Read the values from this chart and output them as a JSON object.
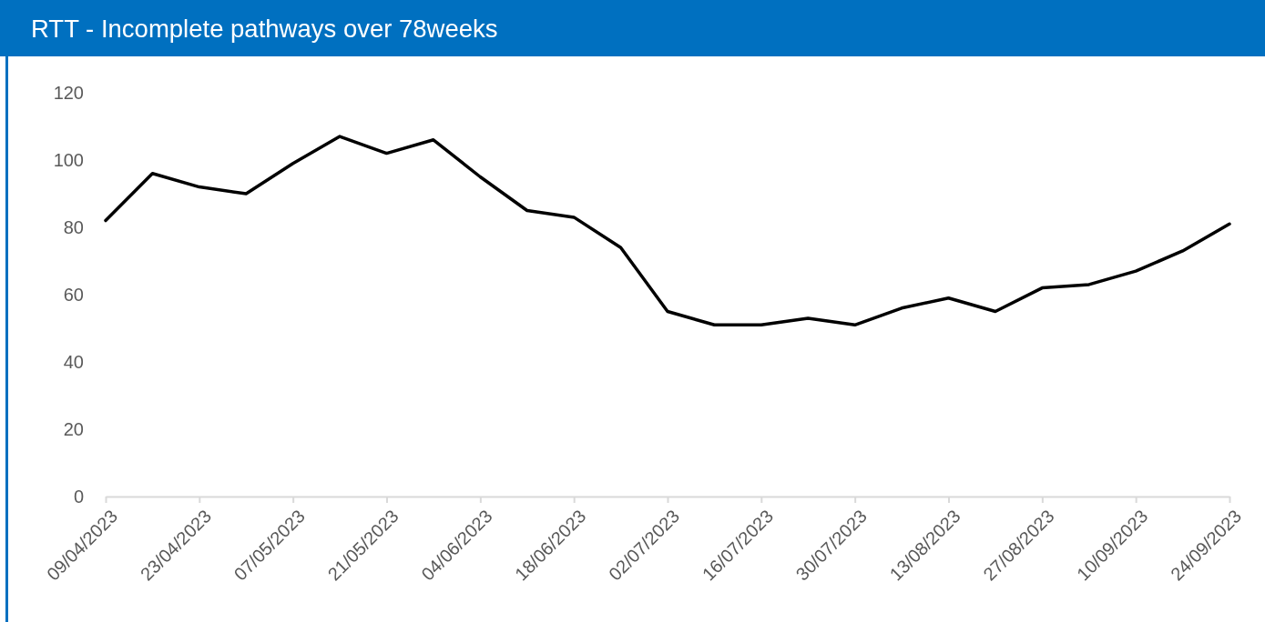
{
  "chart_data": {
    "type": "line",
    "title": "RTT - Incomplete pathways over 78weeks",
    "x": [
      "2023-04-09",
      "2023-04-16",
      "2023-04-23",
      "2023-04-30",
      "2023-05-07",
      "2023-05-14",
      "2023-05-21",
      "2023-05-28",
      "2023-06-04",
      "2023-06-11",
      "2023-06-18",
      "2023-06-25",
      "2023-07-02",
      "2023-07-09",
      "2023-07-16",
      "2023-07-23",
      "2023-07-30",
      "2023-08-06",
      "2023-08-13",
      "2023-08-20",
      "2023-08-27",
      "2023-09-03",
      "2023-09-10",
      "2023-09-17",
      "2023-09-24"
    ],
    "series": [
      {
        "color": "#000000",
        "values": [
          82,
          96,
          92,
          90,
          99,
          107,
          102,
          106,
          95,
          85,
          83,
          74,
          55,
          51,
          51,
          53,
          51,
          56,
          59,
          55,
          62,
          63,
          67,
          73,
          81
        ]
      }
    ],
    "xlim": [
      "2023-04-09",
      "2023-09-24"
    ],
    "xticks": [
      {
        "value": "2023-04-09",
        "label": "09/04/2023"
      },
      {
        "value": "2023-04-23",
        "label": "23/04/2023"
      },
      {
        "value": "2023-05-07",
        "label": "07/05/2023"
      },
      {
        "value": "2023-05-21",
        "label": "21/05/2023"
      },
      {
        "value": "2023-06-04",
        "label": "04/06/2023"
      },
      {
        "value": "2023-06-18",
        "label": "18/06/2023"
      },
      {
        "value": "2023-07-02",
        "label": "02/07/2023"
      },
      {
        "value": "2023-07-16",
        "label": "16/07/2023"
      },
      {
        "value": "2023-07-30",
        "label": "30/07/2023"
      },
      {
        "value": "2023-08-13",
        "label": "13/08/2023"
      },
      {
        "value": "2023-08-27",
        "label": "27/08/2023"
      },
      {
        "value": "2023-09-10",
        "label": "10/09/2023"
      },
      {
        "value": "2023-09-24",
        "label": "24/09/2023"
      }
    ],
    "ylim": [
      0,
      120
    ],
    "yticks": [
      0,
      20,
      40,
      60,
      80,
      100,
      120
    ]
  }
}
